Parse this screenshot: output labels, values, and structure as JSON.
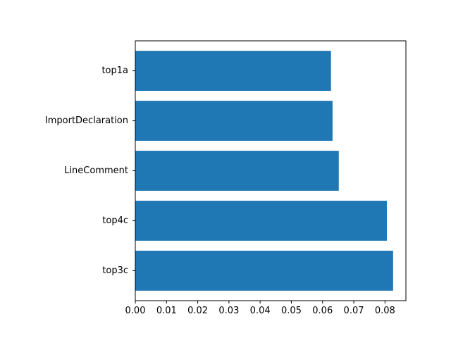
{
  "chart_data": {
    "type": "bar",
    "orientation": "horizontal",
    "title": "",
    "xlabel": "",
    "ylabel": "",
    "categories": [
      "top1a",
      "ImportDeclaration",
      "LineComment",
      "top4c",
      "top3c"
    ],
    "values": [
      0.0627,
      0.0632,
      0.0652,
      0.0806,
      0.0826
    ],
    "xlim": [
      0,
      0.0867
    ],
    "xticks": [
      0.0,
      0.01,
      0.02,
      0.03,
      0.04,
      0.05,
      0.06,
      0.07,
      0.08
    ],
    "xtick_labels": [
      "0.00",
      "0.01",
      "0.02",
      "0.03",
      "0.04",
      "0.05",
      "0.06",
      "0.07",
      "0.08"
    ],
    "grid": false,
    "legend": "none",
    "bar_color": "#1f77b4"
  }
}
